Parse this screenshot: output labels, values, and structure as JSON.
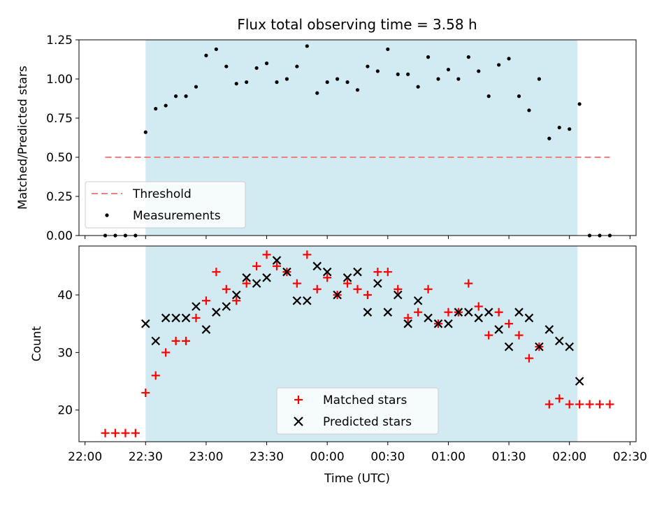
{
  "colors": {
    "shade": "#add8e6",
    "threshold": "#f08080",
    "matched": "#ff0000",
    "predicted": "#000000",
    "points": "#000000"
  },
  "chart_data": [
    {
      "type": "scatter",
      "title": "Flux total observing time = 3.58 h",
      "xlabel": "",
      "ylabel": "Matched/Predicted stars",
      "xlim": [
        "21:57",
        "02:33"
      ],
      "ylim": [
        0,
        1.25
      ],
      "grid": false,
      "legend_placement": "lower-left",
      "yticks": [
        "0.00",
        "0.25",
        "0.50",
        "0.75",
        "1.00",
        "1.25"
      ],
      "shaded_span": [
        "22:30",
        "02:04"
      ],
      "threshold": {
        "name": "Threshold",
        "y": 0.5,
        "x_range": [
          "22:10",
          "02:20"
        ]
      },
      "series": [
        {
          "name": "Measurements",
          "x": [
            "22:10",
            "22:15",
            "22:20",
            "22:25",
            "22:30",
            "22:35",
            "22:40",
            "22:45",
            "22:50",
            "22:55",
            "23:00",
            "23:05",
            "23:10",
            "23:15",
            "23:20",
            "23:25",
            "23:30",
            "23:35",
            "23:40",
            "23:45",
            "23:50",
            "23:55",
            "00:00",
            "00:05",
            "00:10",
            "00:15",
            "00:20",
            "00:25",
            "00:30",
            "00:35",
            "00:40",
            "00:45",
            "00:50",
            "00:55",
            "01:00",
            "01:05",
            "01:10",
            "01:15",
            "01:20",
            "01:25",
            "01:30",
            "01:35",
            "01:40",
            "01:45",
            "01:50",
            "01:55",
            "02:00",
            "02:05",
            "02:10",
            "02:15",
            "02:20"
          ],
          "y": [
            0,
            0,
            0,
            0,
            0.66,
            0.81,
            0.83,
            0.89,
            0.89,
            0.95,
            1.15,
            1.19,
            1.08,
            0.97,
            0.98,
            1.07,
            1.1,
            0.98,
            1.0,
            1.08,
            1.21,
            0.91,
            0.98,
            1.0,
            0.98,
            0.93,
            1.08,
            1.05,
            1.19,
            1.03,
            1.03,
            0.95,
            1.14,
            1.0,
            1.06,
            1.0,
            1.14,
            1.05,
            0.89,
            1.09,
            1.13,
            0.89,
            0.8,
            1.0,
            0.62,
            0.69,
            0.68,
            0.84,
            0,
            0,
            0
          ]
        }
      ]
    },
    {
      "type": "scatter",
      "xlabel": "Time (UTC)",
      "ylabel": "Count",
      "xlim": [
        "21:57",
        "02:33"
      ],
      "ylim": [
        14.5,
        48.5
      ],
      "grid": false,
      "legend_placement": "bottom-center",
      "yticks": [
        "20",
        "30",
        "40"
      ],
      "xticks": [
        "22:00",
        "22:30",
        "23:00",
        "23:30",
        "00:00",
        "00:30",
        "01:00",
        "01:30",
        "02:00",
        "02:30"
      ],
      "shaded_span": [
        "22:30",
        "02:04"
      ],
      "series": [
        {
          "name": "Matched stars",
          "marker": "+",
          "x": [
            "22:10",
            "22:15",
            "22:20",
            "22:25",
            "22:30",
            "22:35",
            "22:40",
            "22:45",
            "22:50",
            "22:55",
            "23:00",
            "23:05",
            "23:10",
            "23:15",
            "23:20",
            "23:25",
            "23:30",
            "23:35",
            "23:40",
            "23:45",
            "23:50",
            "23:55",
            "00:00",
            "00:05",
            "00:10",
            "00:15",
            "00:20",
            "00:25",
            "00:30",
            "00:35",
            "00:40",
            "00:45",
            "00:50",
            "00:55",
            "01:00",
            "01:05",
            "01:10",
            "01:15",
            "01:20",
            "01:25",
            "01:30",
            "01:35",
            "01:40",
            "01:45",
            "01:50",
            "01:55",
            "02:00",
            "02:05",
            "02:10",
            "02:15",
            "02:20"
          ],
          "y": [
            16,
            16,
            16,
            16,
            23,
            26,
            30,
            32,
            32,
            36,
            39,
            44,
            41,
            39,
            42,
            45,
            47,
            45,
            44,
            42,
            47,
            41,
            43,
            40,
            42,
            41,
            40,
            44,
            44,
            41,
            36,
            37,
            41,
            35,
            37,
            37,
            42,
            38,
            33,
            37,
            35,
            33,
            29,
            31,
            21,
            22,
            21,
            21,
            21,
            21,
            21
          ]
        },
        {
          "name": "Predicted stars",
          "marker": "x",
          "x": [
            "22:30",
            "22:35",
            "22:40",
            "22:45",
            "22:50",
            "22:55",
            "23:00",
            "23:05",
            "23:10",
            "23:15",
            "23:20",
            "23:25",
            "23:30",
            "23:35",
            "23:40",
            "23:45",
            "23:50",
            "23:55",
            "00:00",
            "00:05",
            "00:10",
            "00:15",
            "00:20",
            "00:25",
            "00:30",
            "00:35",
            "00:40",
            "00:45",
            "00:50",
            "00:55",
            "01:00",
            "01:05",
            "01:10",
            "01:15",
            "01:20",
            "01:25",
            "01:30",
            "01:35",
            "01:40",
            "01:45",
            "01:50",
            "01:55",
            "02:00",
            "02:05"
          ],
          "y": [
            35,
            32,
            36,
            36,
            36,
            38,
            34,
            37,
            38,
            40,
            43,
            42,
            43,
            46,
            44,
            39,
            39,
            45,
            44,
            40,
            43,
            44,
            37,
            42,
            37,
            40,
            35,
            39,
            36,
            35,
            35,
            37,
            37,
            36,
            37,
            34,
            31,
            37,
            36,
            31,
            34,
            32,
            31,
            25
          ]
        }
      ]
    }
  ]
}
